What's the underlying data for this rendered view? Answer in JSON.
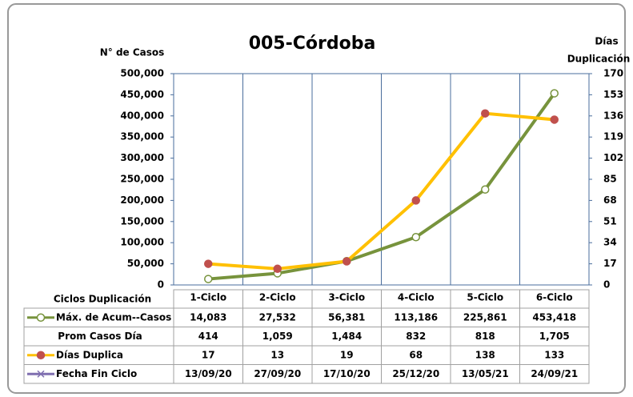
{
  "chart_data": {
    "type": "line",
    "title": "005-Córdoba",
    "ylabel": "N° de Casos",
    "y2label": [
      "Días",
      "Duplicación"
    ],
    "table_header": "Ciclos Duplicación",
    "categories": [
      "1-Ciclo",
      "2-Ciclo",
      "3-Ciclo",
      "4-Ciclo",
      "5-Ciclo",
      "6-Ciclo"
    ],
    "ylim": [
      0,
      500000
    ],
    "yticks": [
      0,
      {
        "value": 50000,
        "label": "50,000"
      },
      {
        "value": 100000,
        "label": "100,000"
      },
      {
        "value": 150000,
        "label": "150,000"
      },
      {
        "value": 200000,
        "label": "200,000"
      },
      {
        "value": 250000,
        "label": "250,000"
      },
      {
        "value": 300000,
        "label": "300,000"
      },
      {
        "value": 350000,
        "label": "350,000"
      },
      {
        "value": 400000,
        "label": "400,000"
      },
      {
        "value": 450000,
        "label": "450,000"
      },
      {
        "value": 500000,
        "label": "500,000"
      }
    ],
    "y2lim": [
      0,
      170
    ],
    "y2ticks": [
      0,
      17,
      34,
      51,
      68,
      85,
      102,
      119,
      136,
      153,
      170
    ],
    "series": [
      {
        "name": "Máx. de Acum--Casos",
        "color": "#77933c",
        "marker_fill": "#ffffff",
        "axis": "y",
        "values": [
          14083,
          27532,
          56381,
          113186,
          225861,
          453418
        ],
        "value_labels": [
          "14,083",
          "27,532",
          "56,381",
          "113,186",
          "225,861",
          "453,418"
        ]
      },
      {
        "name": "Prom Casos Día",
        "values": [
          "414",
          "1,059",
          "1,484",
          "832",
          "818",
          "1,705"
        ]
      },
      {
        "name": "Días Duplica",
        "color": "#ffc000",
        "marker_fill": "#c0504d",
        "axis": "y2",
        "values": [
          17,
          13,
          19,
          68,
          138,
          133
        ]
      },
      {
        "name": "Fecha Fin Ciclo",
        "color": "#7f6fb0",
        "legend_marker": "x",
        "values": [
          "13/09/20",
          "27/09/20",
          "17/10/20",
          "25/12/20",
          "13/05/21",
          "24/09/21"
        ]
      }
    ]
  }
}
